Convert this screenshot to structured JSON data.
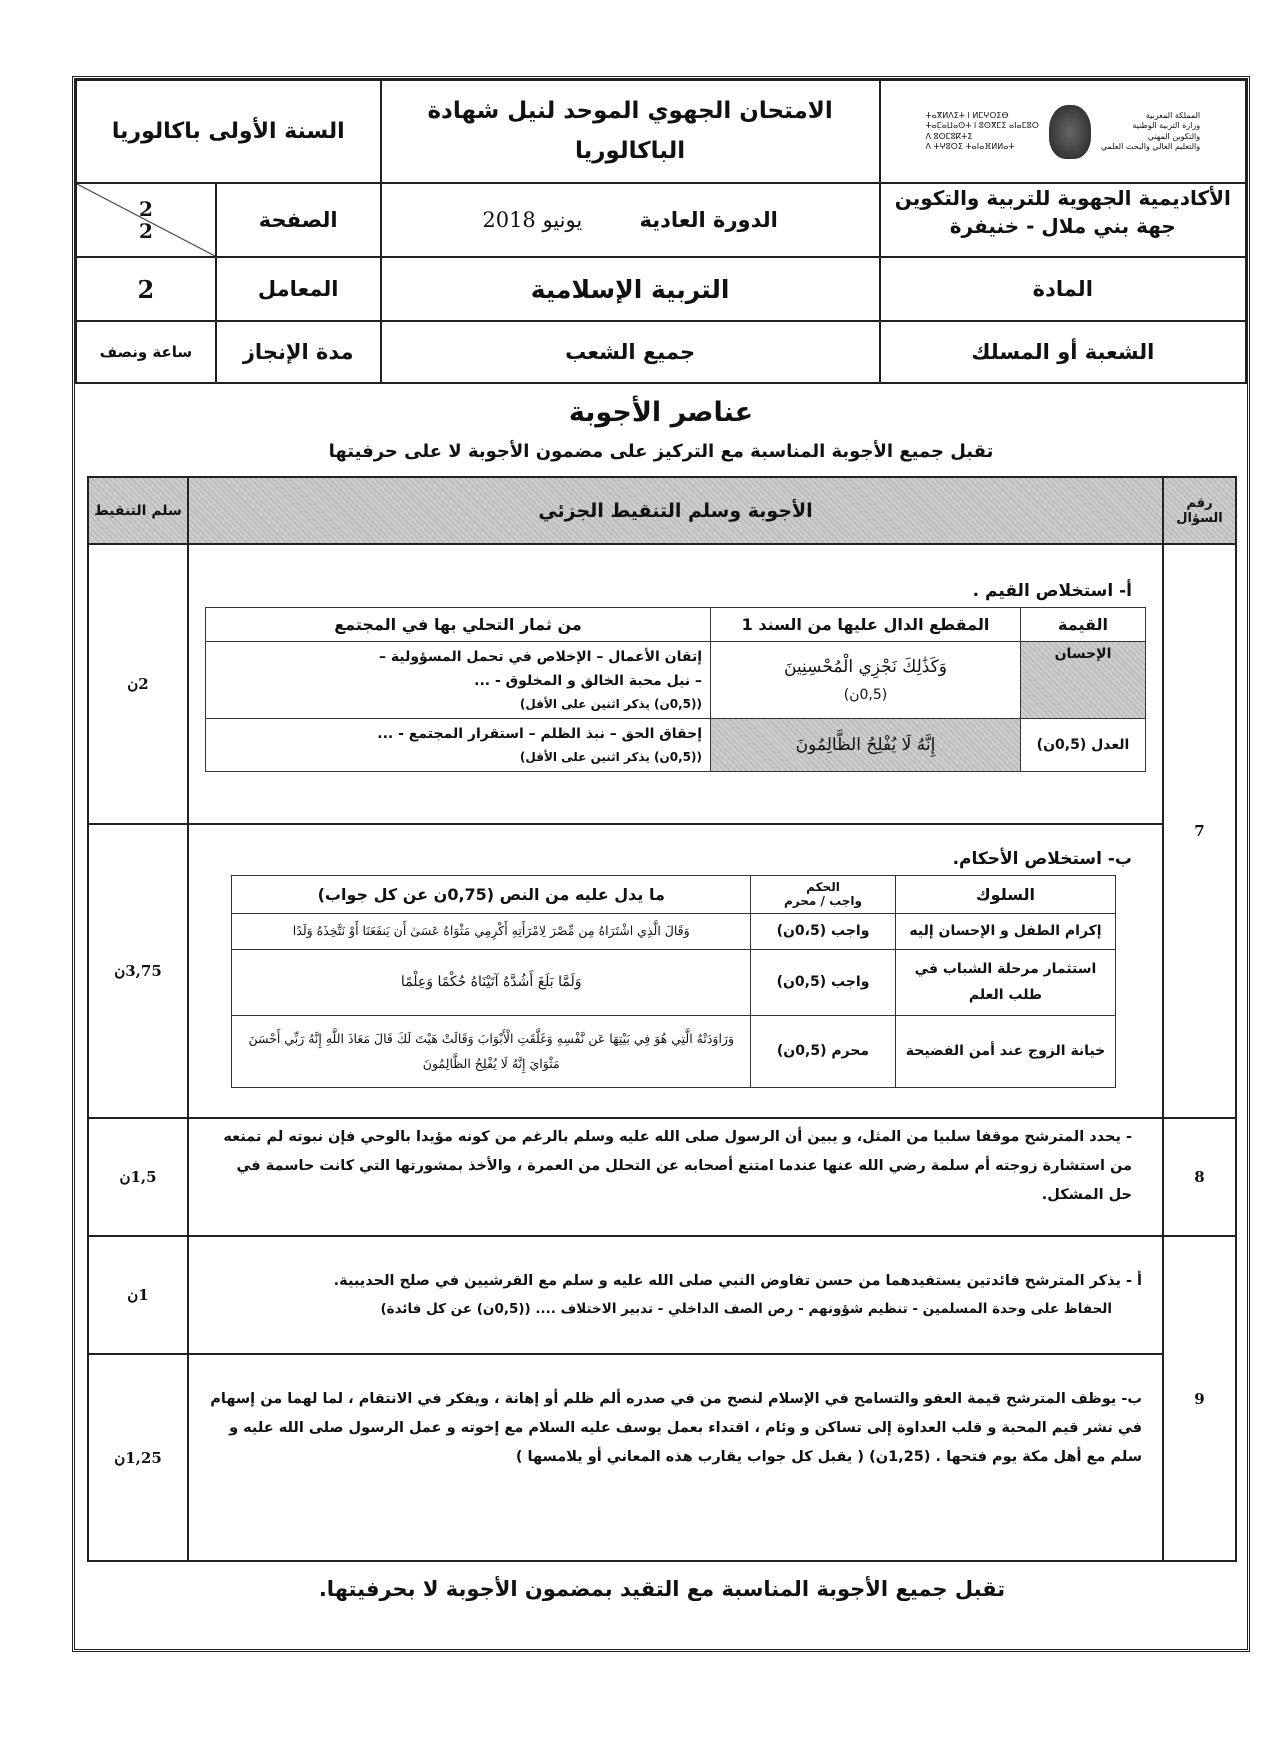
{
  "header": {
    "ministry_ar": [
      "المملكة المغربية",
      "وزارة التربية الوطنية",
      "والتكوين المهني",
      "والتعليم العالي والبحث العلمي"
    ],
    "ministry_tifinagh": [
      "ⵜⴰⴳⵍⴷⵉⵜ ⵏ ⵍⵎⵖⵔⵉⴱ",
      "ⵜⴰⵎⴰⵡⴰⵙⵜ ⵏ ⵓⵙⴳⵎⵉ ⴰⵏⴰⵎⵓⵔ",
      "ⴷ ⵓⵙⵎⵓⴽⵜⵉ",
      "ⴷ ⵜⵖⵓⵔⵉ ⵜⴰⵏⴰⴼⵍⵍⴰⵜ"
    ],
    "academy": "الأكاديمية الجهوية للتربية والتكوين",
    "region": "جهة بني ملال - خنيفرة",
    "exam_title": "الامتحان الجهوي الموحد لنيل شهادة الباكالوريا",
    "level": "السنة الأولى باكالوريا",
    "session": "الدورة العادية",
    "date": "يونيو 2018",
    "page_label": "الصفحة",
    "page_num": "2",
    "page_total": "2",
    "subject_label": "المادة",
    "subject": "التربية الإسلامية",
    "coef_label": "المعامل",
    "coef": "2",
    "branch_label": "الشعبة أو المسلك",
    "branch": "جميع الشعب",
    "duration_label": "مدة الإنجاز",
    "duration": "ساعة ونصف"
  },
  "title": "عناصر الأجوبة",
  "subtitle": "تقبل جميع الأجوبة المناسبة مع التركيز على مضمون الأجوبة لا على حرفيتها",
  "table": {
    "col_qnum": "رقم السؤال",
    "col_answers": "الأجوبة وسلم التنقيط الجزئي",
    "col_score": "سلم التنقيط",
    "q7": {
      "num": "7",
      "a": {
        "heading": "أ-   استخلاص القيم .",
        "score": "2ن",
        "headers": [
          "القيمة",
          "المقطع الدال عليها من السند 1",
          "من ثمار التحلي بها في المجتمع"
        ],
        "rows": [
          {
            "value": "الإحسان",
            "excerpt": "وَكَذَٰلِكَ نَجْزِي الْمُحْسِنِينَ",
            "excerpt_score": "(0,5ن)",
            "fruits": [
              "إتقان الأعمال – الإخلاص في تحمل المسؤولية –",
              "– نيل محبة الخالق و المخلوق  - ...",
              "((0,5ن)  يذكر اثنين على الأقل)"
            ]
          },
          {
            "value": "العدل (0,5ن)",
            "excerpt": "إِنَّهُ لَا يُفْلِحُ الظَّالِمُونَ",
            "excerpt_score": "",
            "fruits": [
              "إحقاق الحق – نبذ الظلم – استقرار المجتمع - ...",
              "((0,5ن)  يذكر اثنين على الأقل)"
            ]
          }
        ]
      },
      "b": {
        "heading": "ب-  استخلاص الأحكام.",
        "score": "3,75ن",
        "headers": [
          "السلوك",
          "الحكم",
          "واجب / محرم",
          "ما يدل عليه  من النص (0,75ن عن كل جواب)"
        ],
        "rows": [
          {
            "behavior": "إكرام الطفل و الإحسان إليه",
            "ruling": "واجب (0،5ن)",
            "evidence": "وَقَالَ الَّذِي اشْتَرَاهُ مِن مِّصْرَ لِامْرَأَتِهِ أَكْرِمِي مَثْوَاهُ عَسَىٰ أَن يَنفَعَنَا أَوْ نَتَّخِذَهُ وَلَدًا"
          },
          {
            "behavior": "استثمار مرحلة الشباب في طلب العلم",
            "ruling": "واجب (0,5ن)",
            "evidence": "وَلَمَّا بَلَغَ أَشُدَّهُ آتَيْنَاهُ حُكْمًا وَعِلْمًا"
          },
          {
            "behavior": "خيانة الزوج عند أمن الفضيحة",
            "ruling": "محرم (0,5ن)",
            "evidence": "وَرَاوَدَتْهُ الَّتِي هُوَ فِي بَيْتِهَا عَن نَّفْسِهِ وَغَلَّقَتِ الْأَبْوَابَ وَقَالَتْ هَيْتَ لَكَ قَالَ مَعَاذَ اللَّهِ إِنَّهُ رَبِّي أَحْسَنَ مَثْوَايَ إِنَّهُ لَا يُفْلِحُ الظَّالِمُونَ"
          }
        ]
      }
    },
    "q8": {
      "num": "8",
      "score": "1,5ن",
      "text": "-  يحدد المترشح موقفا سلبيا من المثل، و يبين أن الرسول صلى الله عليه وسلم بالرغم من كونه مؤيدا بالوحي فإن نبوته لم تمنعه من استشارة زوجته أم سلمة رضي الله عنها عندما امتنع أصحابه عن التحلل من العمرة ، والأخذ بمشورتها التي كانت حاسمة في حل المشكل."
    },
    "q9": {
      "num": "9",
      "a": {
        "score": "1ن",
        "text": [
          "أ - يذكر المترشح  فائدتين يستفيدهما من حسن  تفاوض النبي صلى الله عليه و سلم مع القرشيين  في صلح الحديبية.",
          "الحفاظ على وحدة المسلمين -  تنظيم شؤونهم - رص الصف الداخلي - تدبير الاختلاف .... ((0,5ن) عن كل فائدة)"
        ]
      },
      "b": {
        "score": "1,25ن",
        "text": "ب- يوظف المترشح  قيمة العفو والتسامح في الإسلام لنصح من في صدره ألم ظلم أو إهانة ، ويفكر في الانتقام ، لما لهما من إسهام في نشر قيم المحبة  و قلب العداوة  إلى تساكن و وئام ، اقتداء بعمل يوسف عليه السلام مع إخوته و عمل الرسول صلى الله عليه و سلم مع أهل مكة يوم فتحها . (1,25ن) ( يقبل كل جواب يقارب هذه المعاني أو يلامسها  )"
      }
    }
  },
  "footer": "تقبل جميع الأجوبة المناسبة مع التقيد بمضمون الأجوبة لا بحرفيتها."
}
